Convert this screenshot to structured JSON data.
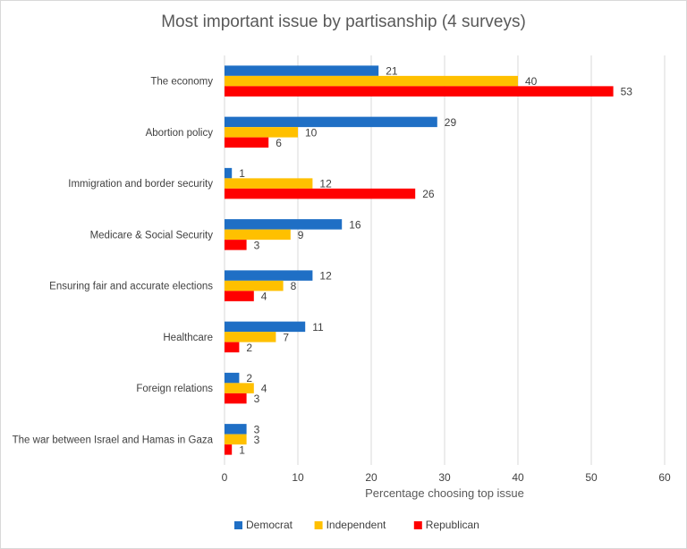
{
  "chart_data": {
    "type": "bar",
    "orientation": "horizontal",
    "title": "Most important issue by partisanship (4 surveys)",
    "xlabel": "Percentage choosing top issue",
    "ylabel": "",
    "xlim": [
      0,
      60
    ],
    "xticks": [
      0,
      10,
      20,
      30,
      40,
      50,
      60
    ],
    "grid": true,
    "legend_position": "bottom",
    "categories": [
      "The economy",
      "Abortion policy",
      "Immigration and border security",
      "Medicare & Social Security",
      "Ensuring fair and accurate elections",
      "Healthcare",
      "Foreign relations",
      "The war between Israel and Hamas in Gaza"
    ],
    "series": [
      {
        "name": "Democrat",
        "color": "#1f6fc5",
        "values": [
          21,
          29,
          1,
          16,
          12,
          11,
          2,
          3
        ]
      },
      {
        "name": "Independent",
        "color": "#ffc000",
        "values": [
          40,
          10,
          12,
          9,
          8,
          7,
          4,
          3
        ]
      },
      {
        "name": "Republican",
        "color": "#ff0000",
        "values": [
          53,
          6,
          26,
          3,
          4,
          2,
          3,
          1
        ]
      }
    ]
  }
}
